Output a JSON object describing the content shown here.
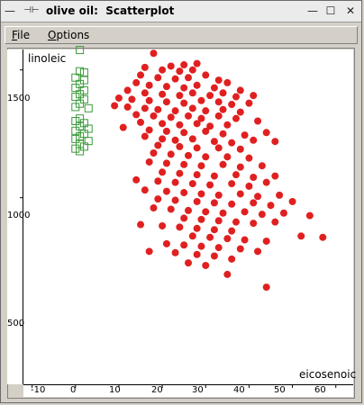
{
  "window": {
    "title": "olive oil:  Scatterplot",
    "controls": {
      "menu_glyph": "—",
      "pin_glyph": "⊣⊢",
      "minimize_glyph": "—",
      "maximize_glyph": "☐",
      "close_glyph": "✕"
    }
  },
  "menubar": {
    "items": [
      {
        "label_ul": "F",
        "label_rest": "ile"
      },
      {
        "label_ul": "O",
        "label_rest": "ptions"
      }
    ]
  },
  "plot": {
    "xlabel": "eicosenoic",
    "ylabel": "linoleic",
    "x_ticks": [
      "-10",
      "0",
      "10",
      "20",
      "30",
      "40",
      "50",
      "60"
    ],
    "y_ticks": [
      "1500",
      "1000",
      "500"
    ]
  },
  "chart_data": {
    "type": "scatter",
    "xlabel": "eicosenoic",
    "ylabel": "linoleic",
    "xlim": [
      -12,
      64
    ],
    "ylim": [
      270,
      1580
    ],
    "series": [
      {
        "marker": "open-square",
        "color": "#3a9a3a",
        "points": [
          [
            1,
            1578
          ],
          [
            1,
            1495
          ],
          [
            2,
            1490
          ],
          [
            0,
            1470
          ],
          [
            2,
            1460
          ],
          [
            1,
            1445
          ],
          [
            0,
            1430
          ],
          [
            2,
            1420
          ],
          [
            1,
            1405
          ],
          [
            0,
            1395
          ],
          [
            2,
            1385
          ],
          [
            1,
            1368
          ],
          [
            0,
            1355
          ],
          [
            3,
            1350
          ],
          [
            1,
            1310
          ],
          [
            0,
            1300
          ],
          [
            2,
            1292
          ],
          [
            1,
            1280
          ],
          [
            3,
            1270
          ],
          [
            0,
            1262
          ],
          [
            2,
            1250
          ],
          [
            1,
            1240
          ],
          [
            0,
            1230
          ],
          [
            3,
            1222
          ],
          [
            1,
            1210
          ],
          [
            2,
            1200
          ],
          [
            0,
            1192
          ],
          [
            1,
            1182
          ]
        ]
      },
      {
        "marker": "filled-circle",
        "color": "#e02020",
        "points": [
          [
            18,
            1565
          ],
          [
            22,
            1515
          ],
          [
            25,
            1520
          ],
          [
            28,
            1525
          ],
          [
            16,
            1510
          ],
          [
            20,
            1500
          ],
          [
            24,
            1495
          ],
          [
            27,
            1500
          ],
          [
            15,
            1480
          ],
          [
            19,
            1470
          ],
          [
            23,
            1465
          ],
          [
            26,
            1470
          ],
          [
            30,
            1480
          ],
          [
            33,
            1460
          ],
          [
            14,
            1450
          ],
          [
            17,
            1440
          ],
          [
            21,
            1435
          ],
          [
            25,
            1430
          ],
          [
            28,
            1440
          ],
          [
            32,
            1430
          ],
          [
            35,
            1450
          ],
          [
            38,
            1420
          ],
          [
            12,
            1420
          ],
          [
            16,
            1410
          ],
          [
            20,
            1405
          ],
          [
            24,
            1400
          ],
          [
            27,
            1410
          ],
          [
            31,
            1400
          ],
          [
            34,
            1410
          ],
          [
            37,
            1395
          ],
          [
            41,
            1400
          ],
          [
            10,
            1390
          ],
          [
            13,
            1385
          ],
          [
            17,
            1380
          ],
          [
            21,
            1375
          ],
          [
            25,
            1370
          ],
          [
            29,
            1380
          ],
          [
            33,
            1375
          ],
          [
            36,
            1365
          ],
          [
            40,
            1370
          ],
          [
            9,
            1360
          ],
          [
            12,
            1355
          ],
          [
            16,
            1350
          ],
          [
            19,
            1345
          ],
          [
            23,
            1340
          ],
          [
            27,
            1350
          ],
          [
            30,
            1340
          ],
          [
            34,
            1345
          ],
          [
            38,
            1335
          ],
          [
            14,
            1325
          ],
          [
            18,
            1320
          ],
          [
            22,
            1315
          ],
          [
            26,
            1320
          ],
          [
            29,
            1310
          ],
          [
            33,
            1320
          ],
          [
            37,
            1310
          ],
          [
            42,
            1300
          ],
          [
            15,
            1295
          ],
          [
            20,
            1290
          ],
          [
            24,
            1285
          ],
          [
            28,
            1290
          ],
          [
            31,
            1280
          ],
          [
            35,
            1285
          ],
          [
            11,
            1275
          ],
          [
            17,
            1265
          ],
          [
            21,
            1260
          ],
          [
            25,
            1255
          ],
          [
            30,
            1260
          ],
          [
            34,
            1250
          ],
          [
            39,
            1245
          ],
          [
            44,
            1255
          ],
          [
            16,
            1240
          ],
          [
            20,
            1230
          ],
          [
            23,
            1225
          ],
          [
            27,
            1230
          ],
          [
            32,
            1220
          ],
          [
            36,
            1215
          ],
          [
            41,
            1225
          ],
          [
            46,
            1220
          ],
          [
            19,
            1205
          ],
          [
            24,
            1200
          ],
          [
            28,
            1195
          ],
          [
            33,
            1195
          ],
          [
            38,
            1190
          ],
          [
            18,
            1175
          ],
          [
            22,
            1170
          ],
          [
            26,
            1165
          ],
          [
            30,
            1160
          ],
          [
            35,
            1160
          ],
          [
            40,
            1155
          ],
          [
            17,
            1140
          ],
          [
            21,
            1135
          ],
          [
            25,
            1130
          ],
          [
            29,
            1125
          ],
          [
            34,
            1130
          ],
          [
            38,
            1120
          ],
          [
            43,
            1125
          ],
          [
            20,
            1100
          ],
          [
            24,
            1095
          ],
          [
            28,
            1090
          ],
          [
            32,
            1085
          ],
          [
            37,
            1090
          ],
          [
            41,
            1080
          ],
          [
            46,
            1085
          ],
          [
            14,
            1070
          ],
          [
            19,
            1065
          ],
          [
            23,
            1060
          ],
          [
            27,
            1055
          ],
          [
            31,
            1050
          ],
          [
            36,
            1055
          ],
          [
            40,
            1045
          ],
          [
            44,
            1060
          ],
          [
            16,
            1030
          ],
          [
            21,
            1025
          ],
          [
            25,
            1020
          ],
          [
            29,
            1015
          ],
          [
            33,
            1010
          ],
          [
            38,
            1015
          ],
          [
            42,
            1005
          ],
          [
            47,
            1010
          ],
          [
            19,
            995
          ],
          [
            23,
            990
          ],
          [
            28,
            985
          ],
          [
            32,
            980
          ],
          [
            36,
            975
          ],
          [
            41,
            980
          ],
          [
            45,
            970
          ],
          [
            50,
            985
          ],
          [
            18,
            960
          ],
          [
            22,
            955
          ],
          [
            26,
            950
          ],
          [
            30,
            945
          ],
          [
            34,
            940
          ],
          [
            39,
            945
          ],
          [
            43,
            935
          ],
          [
            48,
            940
          ],
          [
            25,
            920
          ],
          [
            29,
            915
          ],
          [
            33,
            910
          ],
          [
            37,
            905
          ],
          [
            41,
            900
          ],
          [
            46,
            905
          ],
          [
            54,
            930
          ],
          [
            15,
            895
          ],
          [
            20,
            890
          ],
          [
            24,
            885
          ],
          [
            28,
            880
          ],
          [
            32,
            875
          ],
          [
            36,
            870
          ],
          [
            27,
            850
          ],
          [
            31,
            845
          ],
          [
            35,
            840
          ],
          [
            39,
            835
          ],
          [
            44,
            830
          ],
          [
            52,
            850
          ],
          [
            57,
            845
          ],
          [
            21,
            820
          ],
          [
            25,
            815
          ],
          [
            29,
            810
          ],
          [
            33,
            805
          ],
          [
            38,
            800
          ],
          [
            17,
            790
          ],
          [
            23,
            785
          ],
          [
            28,
            778
          ],
          [
            32,
            772
          ],
          [
            42,
            790
          ],
          [
            36,
            760
          ],
          [
            26,
            745
          ],
          [
            35,
            700
          ],
          [
            44,
            650
          ],
          [
            30,
            735
          ]
        ]
      }
    ]
  }
}
